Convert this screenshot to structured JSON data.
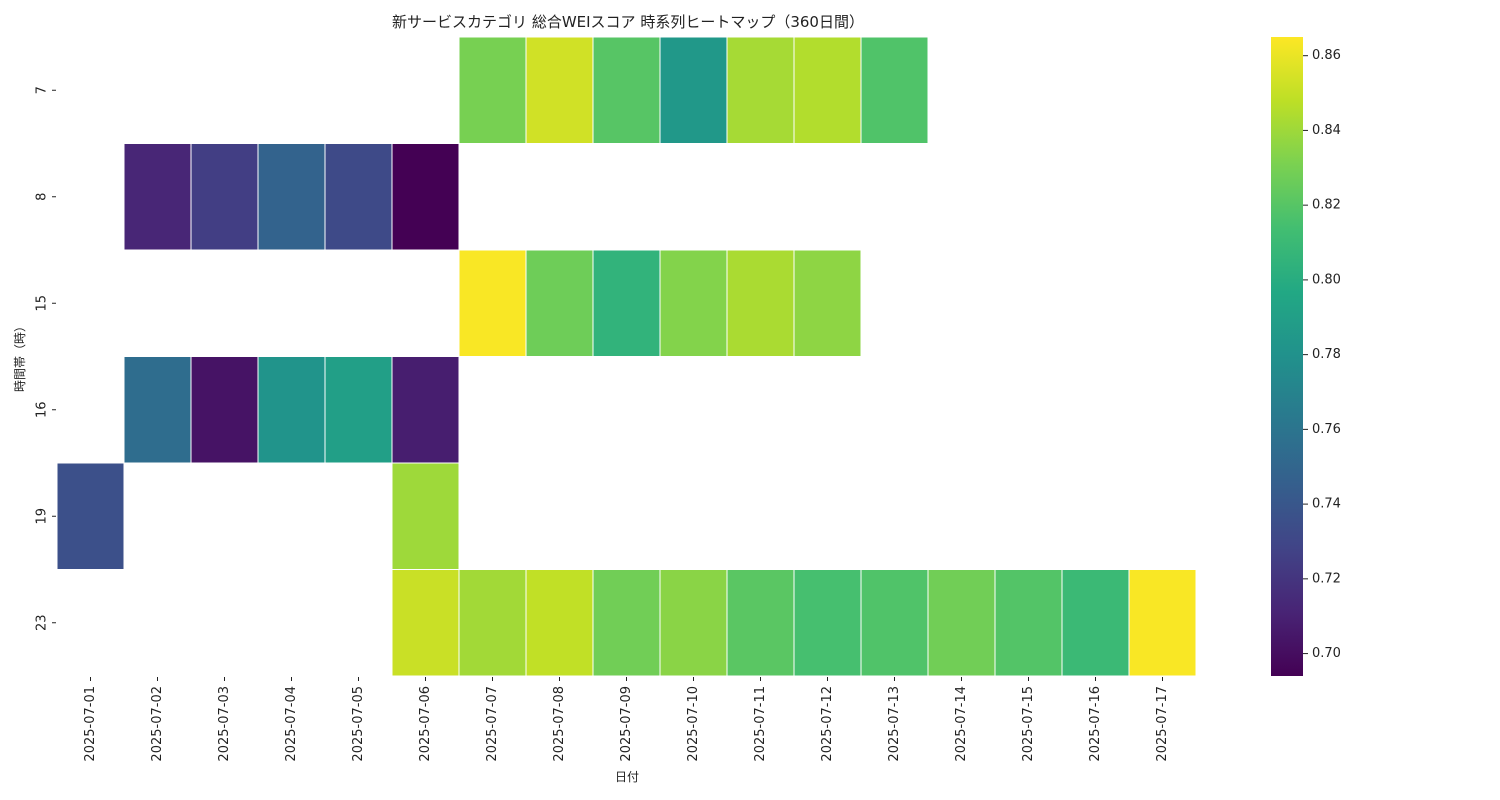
{
  "chart_data": {
    "type": "heatmap",
    "title": "新サービスカテゴリ 総合WEIスコア 時系列ヒートマップ（360日間）",
    "xlabel": "日付",
    "ylabel": "時間帯（時）",
    "x_categories": [
      "2025-07-01",
      "2025-07-02",
      "2025-07-03",
      "2025-07-04",
      "2025-07-05",
      "2025-07-06",
      "2025-07-07",
      "2025-07-08",
      "2025-07-09",
      "2025-07-10",
      "2025-07-11",
      "2025-07-12",
      "2025-07-13",
      "2025-07-14",
      "2025-07-15",
      "2025-07-16",
      "2025-07-17"
    ],
    "y_categories": [
      "7",
      "8",
      "15",
      "16",
      "19",
      "23"
    ],
    "values": [
      [
        null,
        null,
        null,
        null,
        null,
        null,
        0.83,
        0.853,
        0.82,
        0.785,
        0.842,
        0.845,
        0.818,
        null,
        null,
        null,
        null
      ],
      [
        null,
        0.712,
        0.725,
        0.748,
        0.732,
        0.694,
        null,
        null,
        null,
        null,
        null,
        null,
        null,
        null,
        null,
        null,
        null
      ],
      [
        null,
        null,
        null,
        null,
        null,
        null,
        0.864,
        0.827,
        0.805,
        0.833,
        0.843,
        0.836,
        null,
        null,
        null,
        null,
        null
      ],
      [
        null,
        0.755,
        0.703,
        0.782,
        0.79,
        0.708,
        null,
        null,
        null,
        null,
        null,
        null,
        null,
        null,
        null,
        null,
        null
      ],
      [
        0.736,
        null,
        null,
        null,
        null,
        0.84,
        null,
        null,
        null,
        null,
        null,
        null,
        null,
        null,
        null,
        null,
        null
      ],
      [
        null,
        null,
        null,
        null,
        null,
        0.851,
        0.841,
        0.849,
        0.828,
        0.835,
        0.821,
        0.815,
        0.818,
        0.828,
        0.819,
        0.81,
        0.864
      ]
    ],
    "colorbar": {
      "colormap": "viridis",
      "min": 0.694,
      "max": 0.865,
      "ticks": [
        "0.70",
        "0.72",
        "0.74",
        "0.76",
        "0.78",
        "0.80",
        "0.82",
        "0.84",
        "0.86"
      ]
    },
    "grid": false,
    "legend": "colorbar-right"
  }
}
